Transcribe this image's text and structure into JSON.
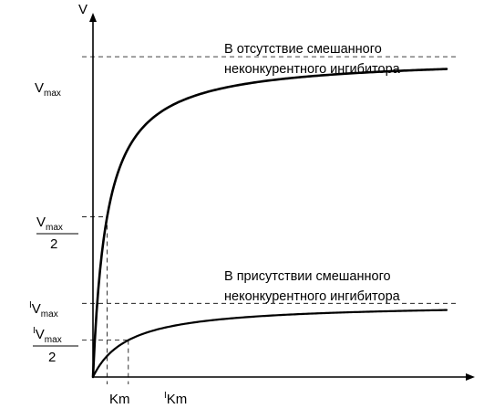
{
  "chart_data": {
    "type": "line",
    "axes": {
      "y_label": "V",
      "x_label": ""
    },
    "grid": false,
    "x_range": [
      0,
      10
    ],
    "y_range": [
      0,
      1.12
    ],
    "series": [
      {
        "id": "without-inhibitor",
        "annotation_lines": [
          "В отсутствие смешанного",
          "неконкурентного ингибитора"
        ],
        "vmax": 1.0,
        "km": 0.4
      },
      {
        "id": "with-inhibitor",
        "annotation_lines": [
          "В присутствии смешанного",
          "неконкурентного ингибитора"
        ],
        "vmax": 0.23,
        "km": 1.0
      }
    ],
    "y_tick_labels": {
      "vmax": {
        "main": "V",
        "sub": "max"
      },
      "half_vmax": {
        "main": "V",
        "sub": "max",
        "denominator": "2"
      },
      "i_vmax": {
        "prefix": "I",
        "main": "V",
        "sub": "max"
      },
      "half_i_vmax": {
        "prefix": "I",
        "main": "V",
        "sub": "max",
        "denominator": "2"
      }
    },
    "x_tick_labels": {
      "km": "Km",
      "i_km": {
        "prefix": "I",
        "main": "Km"
      }
    }
  }
}
